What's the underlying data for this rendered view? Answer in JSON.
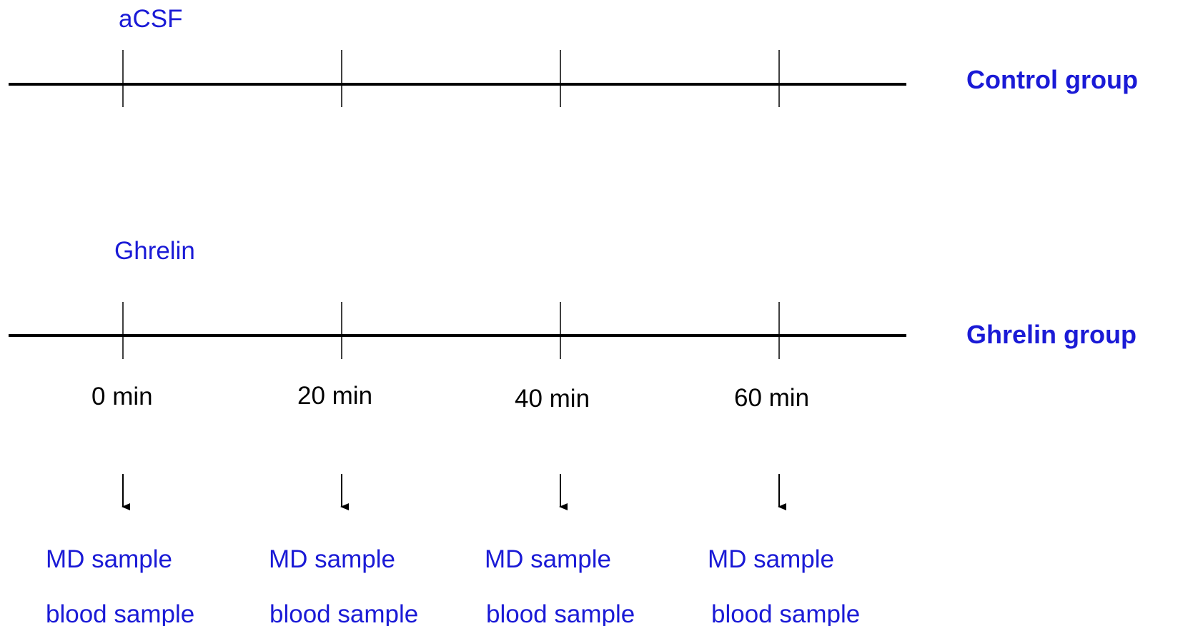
{
  "colors": {
    "label_blue": "#1a1ad6",
    "line_black": "#000000"
  },
  "control": {
    "drug": "aCSF",
    "group": "Control group"
  },
  "ghrelin": {
    "drug": "Ghrelin",
    "group": "Ghrelin group"
  },
  "timepoints": [
    {
      "time": "0 min",
      "md": "MD sample",
      "blood": "blood sample"
    },
    {
      "time": "20 min",
      "md": "MD sample",
      "blood": "blood sample"
    },
    {
      "time": "40 min",
      "md": "MD sample",
      "blood": "blood sample"
    },
    {
      "time": "60 min",
      "md": "MD sample",
      "blood": "blood sample"
    }
  ]
}
